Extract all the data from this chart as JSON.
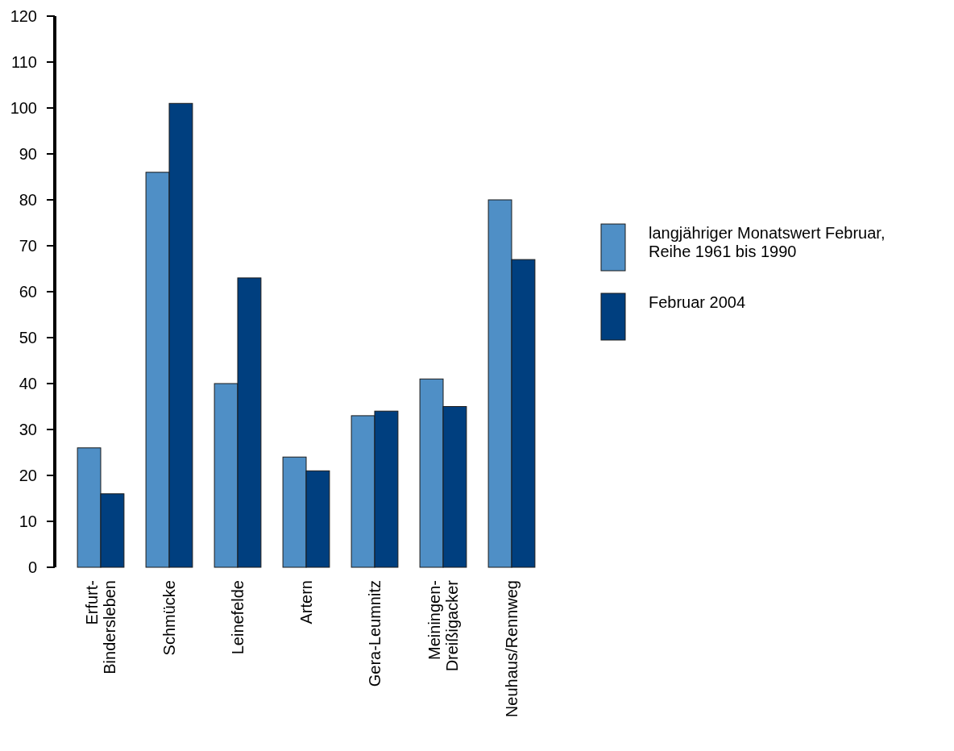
{
  "chart_data": {
    "type": "bar",
    "categories": [
      "Erfurt-\nBindersleben",
      "Schmücke",
      "Leinefelde",
      "Artern",
      "Gera-Leumnitz",
      "Meiningen-\nDreißigacker",
      "Neuhaus/Rennweg"
    ],
    "series": [
      {
        "name": "langjähriger Monatswert Februar,\nReihe 1961 bis 1990",
        "color": "#4f8fc6",
        "values": [
          26,
          86,
          40,
          24,
          33,
          41,
          80
        ]
      },
      {
        "name": "Februar 2004",
        "color": "#003f7f",
        "values": [
          16,
          101,
          63,
          21,
          34,
          35,
          67
        ]
      }
    ],
    "ylim": [
      0,
      120
    ],
    "yticks": [
      0,
      10,
      20,
      30,
      40,
      50,
      60,
      70,
      80,
      90,
      100,
      110,
      120
    ],
    "legend": "right"
  }
}
